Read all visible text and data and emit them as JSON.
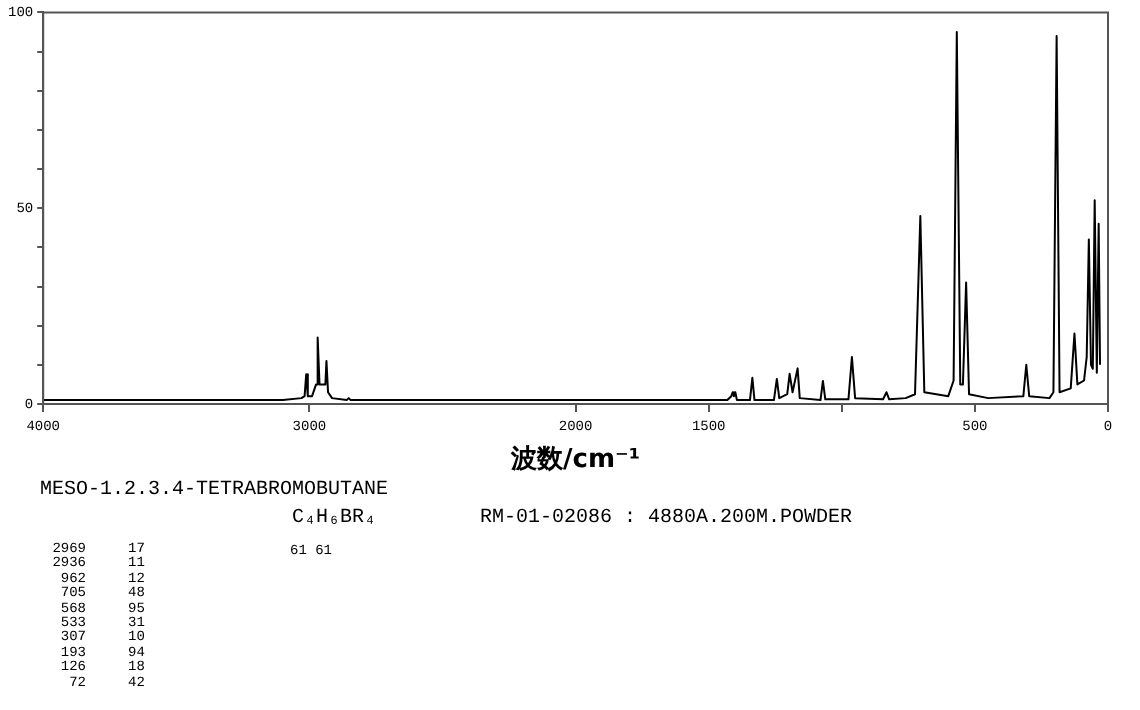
{
  "chart_data": {
    "type": "line",
    "title": "MESO-1.2.3.4-TETRABROMOBUTANE",
    "subtitle": "C₄H₆BR₄",
    "xlabel": "波数/cm⁻¹",
    "annotations": [
      "RM-01-02086 : 4880A.200M.POWDER",
      "2969 17",
      "2936 11",
      "962 12",
      "705 48",
      "568 95",
      "533 31",
      "307 10",
      "193 94",
      "126 18",
      "72 42",
      "61 61"
    ],
    "xlim": [
      4000,
      0
    ],
    "xticks": [
      4000,
      3000,
      2000,
      1500,
      {
        "value": 1000,
        "label": null
      },
      500,
      0
    ],
    "ylim": [
      0,
      100
    ],
    "yticks": [
      0,
      {
        "value": 10,
        "label": null
      },
      {
        "value": 20,
        "label": null
      },
      {
        "value": 30,
        "label": null
      },
      {
        "value": 40,
        "label": null
      },
      50,
      {
        "value": 60,
        "label": null
      },
      {
        "value": 70,
        "label": null
      },
      {
        "value": 80,
        "label": null
      },
      {
        "value": 90,
        "label": null
      },
      100
    ],
    "grid": false,
    "legend": false,
    "marker": "none",
    "line_style": "solid",
    "series": [
      {
        "color": "#000000",
        "x": [
          4000,
          3100,
          3030,
          3018,
          3012,
          3006,
          2990,
          2975,
          2969,
          2962,
          2950,
          2940,
          2936,
          2930,
          2915,
          2860,
          2852,
          2845,
          2000,
          1430,
          1415,
          1410,
          1405,
          1400,
          1394,
          1345,
          1336,
          1328,
          1255,
          1244,
          1235,
          1205,
          1196,
          1185,
          1166,
          1158,
          1080,
          1071,
          1062,
          975,
          962,
          950,
          845,
          832,
          822,
          760,
          725,
          705,
          690,
          600,
          580,
          568,
          555,
          545,
          533,
          522,
          450,
          318,
          307,
          296,
          220,
          205,
          193,
          182,
          140,
          126,
          115,
          90,
          80,
          72,
          64,
          57,
          50,
          42,
          35,
          30
        ],
        "values": [
          1,
          1,
          1.5,
          2,
          7.6,
          2,
          2,
          5,
          17,
          5,
          5,
          5,
          11,
          3,
          1.5,
          1,
          1.5,
          1,
          1,
          1,
          2,
          3,
          2,
          3,
          1,
          1,
          6.7,
          1,
          1,
          6.4,
          1.5,
          2.5,
          7.7,
          3,
          9.1,
          1.5,
          1,
          5.9,
          1.2,
          1.2,
          12,
          1.5,
          1.2,
          3,
          1.2,
          1.5,
          2.5,
          48,
          3,
          2,
          6,
          95,
          5,
          5,
          31,
          2.5,
          1.5,
          2,
          10,
          2,
          1.5,
          3,
          94,
          3,
          4,
          18,
          5,
          6,
          12,
          42,
          10,
          9,
          52,
          8,
          46,
          10
        ]
      }
    ]
  }
}
